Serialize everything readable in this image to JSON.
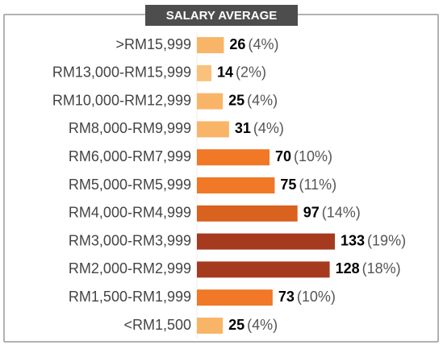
{
  "chart_data": {
    "type": "bar",
    "orientation": "horizontal",
    "title": "SALARY AVERAGE",
    "categories": [
      ">RM15,999",
      "RM13,000-RM15,999",
      "RM10,000-RM12,999",
      "RM8,000-RM9,999",
      "RM6,000-RM7,999",
      "RM5,000-RM5,999",
      "RM4,000-RM4,999",
      "RM3,000-RM3,999",
      "RM2,000-RM2,999",
      "RM1,500-RM1,999",
      "<RM1,500"
    ],
    "values": [
      26,
      14,
      25,
      31,
      70,
      75,
      97,
      133,
      128,
      73,
      25
    ],
    "percent_labels": [
      "(4%)",
      "(2%)",
      "(4%)",
      "(4%)",
      "(10%)",
      "(11%)",
      "(14%)",
      "(19%)",
      "(18%)",
      "(10%)",
      "(4%)"
    ],
    "colors": [
      "#f9b567",
      "#f9c27a",
      "#f9b567",
      "#f9b567",
      "#f07826",
      "#f07826",
      "#d9621f",
      "#a63a1e",
      "#a63a1e",
      "#f07826",
      "#f9b567"
    ]
  }
}
